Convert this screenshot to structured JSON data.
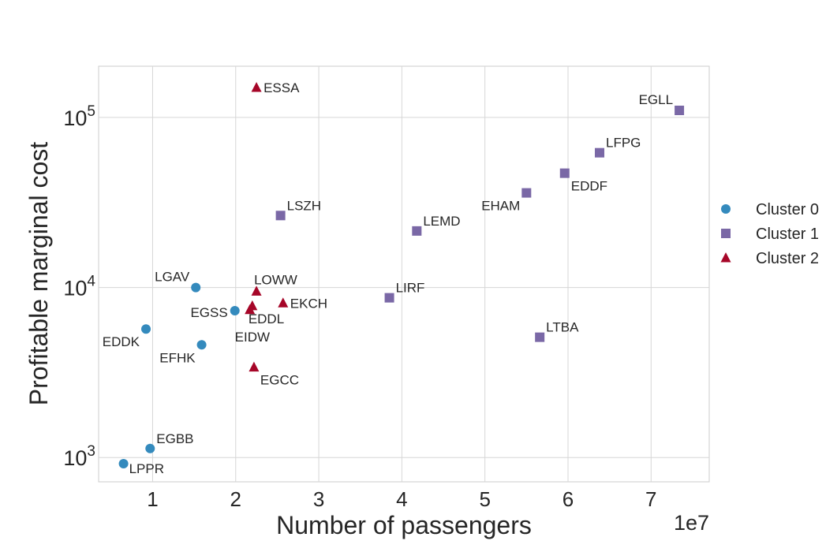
{
  "chart_data": {
    "type": "scatter",
    "xlabel": "Number of passengers",
    "ylabel": "Profitable marginal cost",
    "x_offset_label": "1e7",
    "x_scale_factor": 10000000,
    "xlim": [
      3500000,
      77000000
    ],
    "ylim": [
      720,
      200000
    ],
    "yscale": "log",
    "x_ticks": [
      10000000,
      20000000,
      30000000,
      40000000,
      50000000,
      60000000,
      70000000
    ],
    "x_tick_labels": [
      "1",
      "2",
      "3",
      "4",
      "5",
      "6",
      "7"
    ],
    "y_ticks": [
      {
        "value": 1000,
        "base": "10",
        "exp": "3"
      },
      {
        "value": 10000,
        "base": "10",
        "exp": "4"
      },
      {
        "value": 100000,
        "base": "10",
        "exp": "5"
      }
    ],
    "grid": true,
    "legend_position": "right",
    "series": [
      {
        "name": "Cluster 0",
        "marker": "circle",
        "color": "#348abd",
        "points": [
          {
            "label": "LGAV",
            "x": 15200000,
            "y": 10000,
            "pos": "above-left"
          },
          {
            "label": "EGSS",
            "x": 19900000,
            "y": 7300,
            "pos": "left"
          },
          {
            "label": "EDDK",
            "x": 9200000,
            "y": 5700,
            "pos": "below-left"
          },
          {
            "label": "EFHK",
            "x": 15900000,
            "y": 4600,
            "pos": "below-left"
          },
          {
            "label": "EGBB",
            "x": 9700000,
            "y": 1130,
            "pos": "above-right"
          },
          {
            "label": "LPPR",
            "x": 6500000,
            "y": 920,
            "pos": "right-low"
          }
        ]
      },
      {
        "name": "Cluster 1",
        "marker": "square",
        "color": "#7a68a6",
        "points": [
          {
            "label": "EGLL",
            "x": 73400000,
            "y": 110000,
            "pos": "above-left"
          },
          {
            "label": "LFPG",
            "x": 63800000,
            "y": 62000,
            "pos": "above-right"
          },
          {
            "label": "EDDF",
            "x": 59600000,
            "y": 47000,
            "pos": "below-right"
          },
          {
            "label": "EHAM",
            "x": 55000000,
            "y": 36000,
            "pos": "below-left"
          },
          {
            "label": "LSZH",
            "x": 25400000,
            "y": 26500,
            "pos": "above-right"
          },
          {
            "label": "LEMD",
            "x": 41800000,
            "y": 21500,
            "pos": "above-right"
          },
          {
            "label": "LIRF",
            "x": 38500000,
            "y": 8700,
            "pos": "above-right"
          },
          {
            "label": "LTBA",
            "x": 56600000,
            "y": 5100,
            "pos": "above-right"
          }
        ]
      },
      {
        "name": "Cluster 2",
        "marker": "triangle",
        "color": "#a60628",
        "points": [
          {
            "label": "ESSA",
            "x": 22500000,
            "y": 150000,
            "pos": "right"
          },
          {
            "label": "LOWW",
            "x": 22500000,
            "y": 9500,
            "pos": "above"
          },
          {
            "label": "EKCH",
            "x": 25700000,
            "y": 8100,
            "pos": "right"
          },
          {
            "label": "EDDL",
            "x": 22000000,
            "y": 7800,
            "pos": "below"
          },
          {
            "label": "EIDW",
            "x": 21700000,
            "y": 7400,
            "pos": "below-far"
          },
          {
            "label": "EGCC",
            "x": 22200000,
            "y": 3400,
            "pos": "below-right"
          }
        ]
      }
    ]
  }
}
